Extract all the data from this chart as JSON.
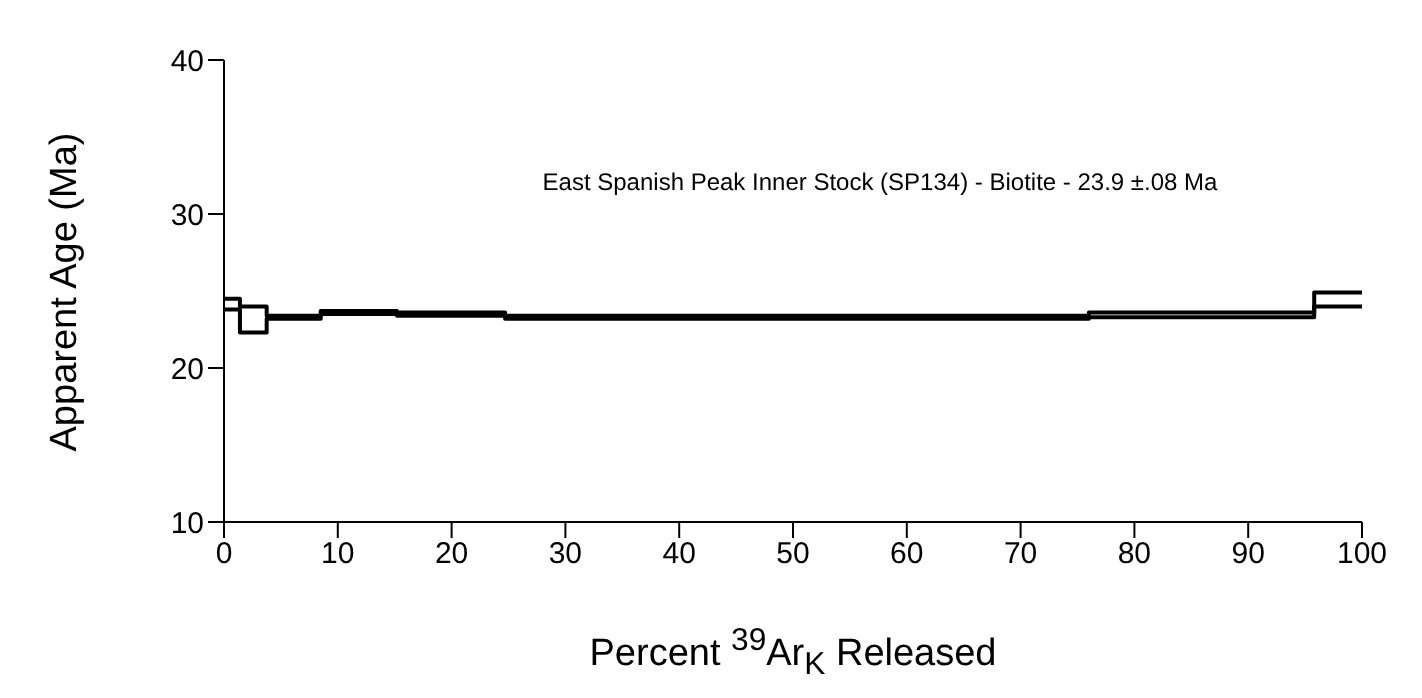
{
  "chart_data": {
    "type": "step",
    "xlabel": "Percent $^{39}$Ar$_{K}$ Released",
    "ylabel": "Apparent Age (Ma)",
    "annotations": [
      "East Spanish Peak Inner Stock (SP134) - Biotite - 23.9 ±.08 Ma"
    ],
    "series": [
      {
        "color": "#000000",
        "x": [
          0,
          1.4,
          3.75,
          8.5,
          15.2,
          24.7,
          76,
          95.8,
          100
        ],
        "values": [
          24.5,
          24.0,
          23.4,
          23.7,
          23.6,
          23.4,
          23.6,
          24.9,
          24.9
        ]
      },
      {
        "color": "#000000",
        "x": [
          0,
          1.4,
          3.75,
          8.5,
          15.2,
          24.7,
          76,
          95.8,
          100
        ],
        "values": [
          23.8,
          22.3,
          23.2,
          23.5,
          23.4,
          23.2,
          23.3,
          24.0,
          24.0
        ]
      }
    ],
    "xlim": [
      0,
      100
    ],
    "xticks": [
      0,
      10,
      20,
      30,
      40,
      50,
      60,
      70,
      80,
      90,
      100
    ],
    "ylim": [
      10,
      40
    ],
    "yticks": [
      10,
      20,
      30,
      40
    ],
    "grid": false,
    "legend": false,
    "marker": "none",
    "line_style": "solid"
  }
}
